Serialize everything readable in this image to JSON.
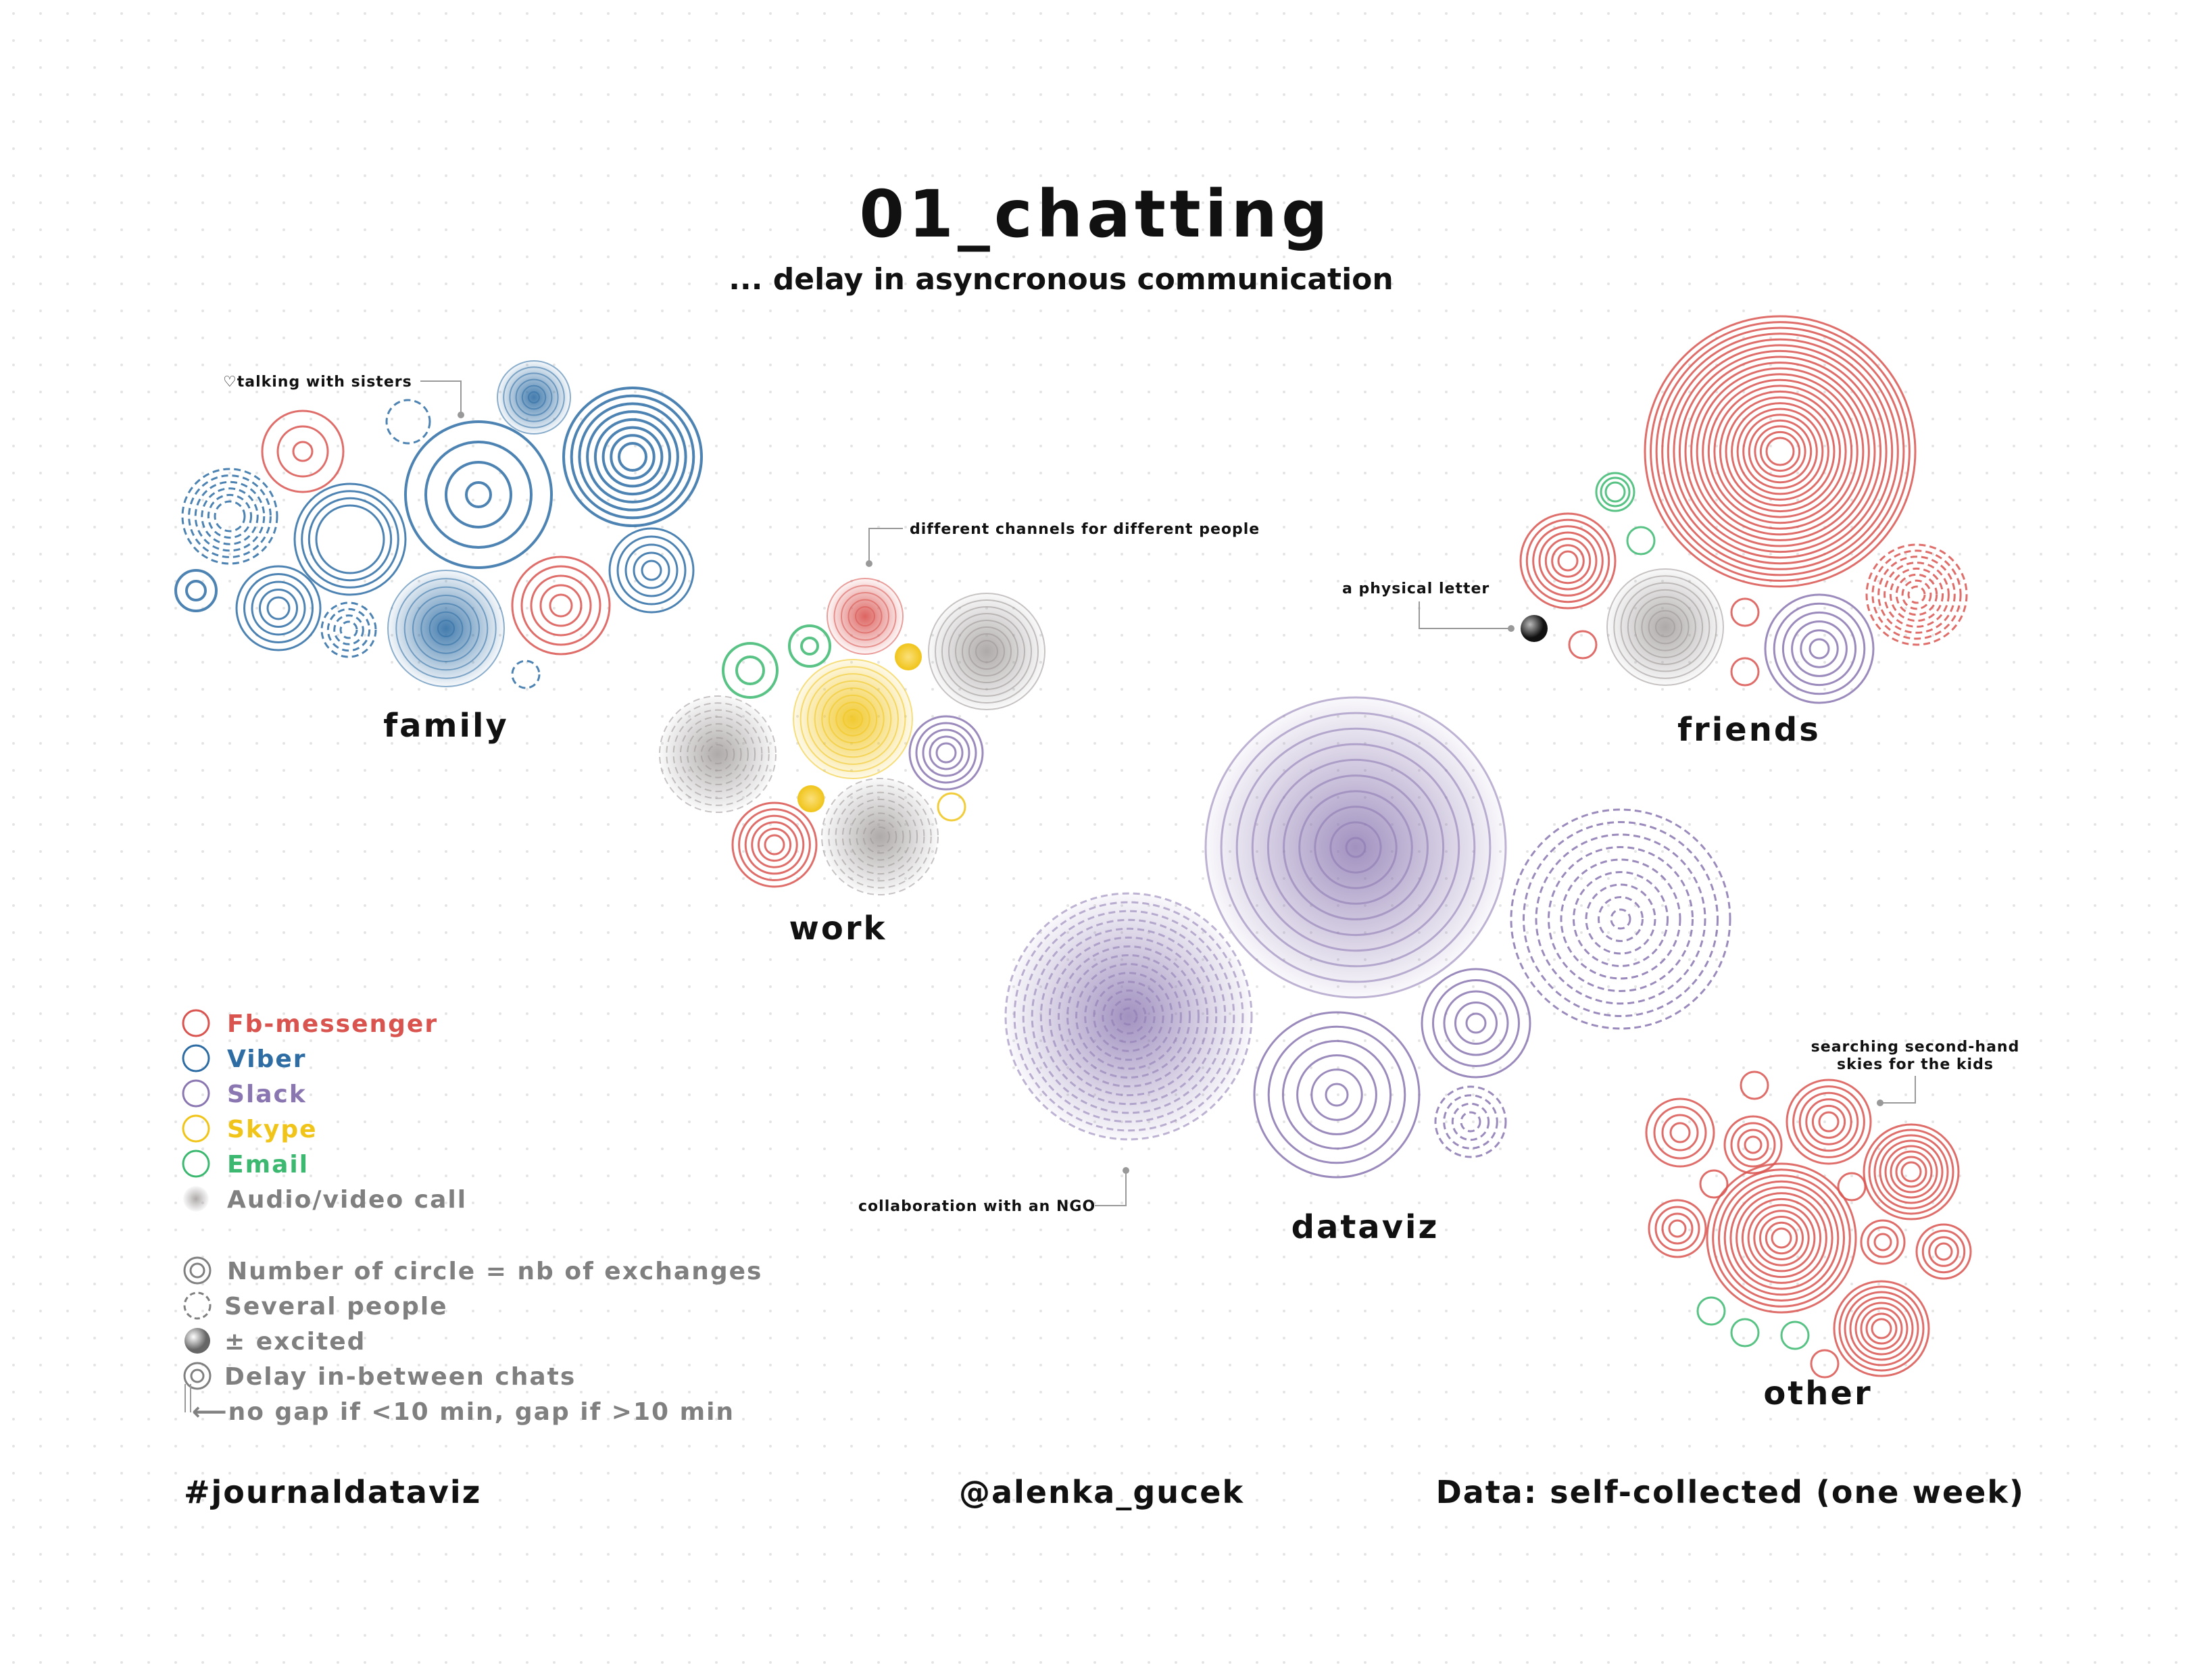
{
  "title": "01_chatting",
  "subtitle": "... delay in asyncronous communication",
  "colors": {
    "fb": "#d9534f",
    "viber": "#2e6da4",
    "slack": "#8a76b0",
    "skype": "#f0c419",
    "email": "#3cb870",
    "call": "#9a9494",
    "legend_text_gray": "#808080"
  },
  "groups": {
    "family": "family",
    "work": "work",
    "friends": "friends",
    "dataviz": "dataviz",
    "other": "other"
  },
  "annotations": {
    "sisters": "♡talking with  sisters",
    "channels": "different channels for different people",
    "letter": "a physical letter",
    "ngo": "collaboration with an NGO",
    "searching_line1": "searching second-hand",
    "searching_line2": "skies for the kids"
  },
  "legend": {
    "channels": [
      {
        "label": "Fb-messenger",
        "color_key": "fb"
      },
      {
        "label": "Viber",
        "color_key": "viber"
      },
      {
        "label": "Slack",
        "color_key": "slack"
      },
      {
        "label": "Skype",
        "color_key": "skype"
      },
      {
        "label": "Email",
        "color_key": "email"
      },
      {
        "label": "Audio/video call",
        "color_key": "call"
      }
    ],
    "encodings": [
      {
        "label": "Number of circle = nb of exchanges",
        "icon": "concentric-circles-icon"
      },
      {
        "label": "Several people",
        "icon": "dashed-circle-icon"
      },
      {
        "label": "± excited",
        "icon": "gradient-circle-icon"
      },
      {
        "label": "Delay in-between chats",
        "icon": "gap-circle-icon"
      },
      {
        "label": "⟵no gap if <10 min, gap if >10 min",
        "icon": "arrow-icon"
      }
    ]
  },
  "footer": {
    "hashtag": "#journaldataviz",
    "author": "@alenka_gucek",
    "source": "Data: self-collected (one week)"
  }
}
